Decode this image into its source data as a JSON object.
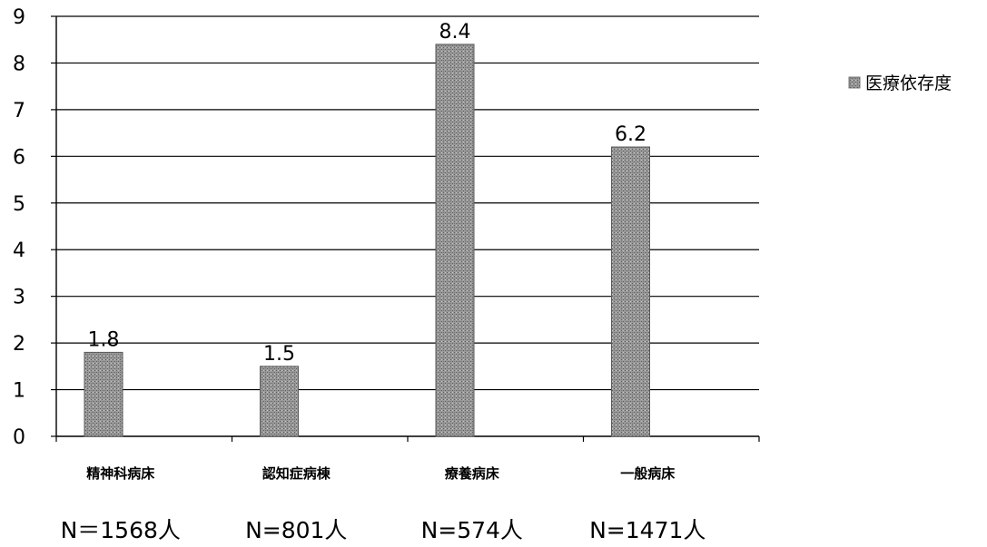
{
  "chart_data": {
    "type": "bar",
    "categories": [
      "精神科病床",
      "認知症病棟",
      "療養病床",
      "一般病床"
    ],
    "series": [
      {
        "name": "医療依存度",
        "values": [
          1.8,
          1.5,
          8.4,
          6.2
        ]
      }
    ],
    "data_labels": [
      "1.8",
      "1.5",
      "8.4",
      "6.2"
    ],
    "sample_sizes": [
      "N＝1568人",
      "N=801人",
      "N=574人",
      "N=1471人"
    ],
    "ylim": [
      0,
      9
    ],
    "yticks": [
      "0",
      "1",
      "2",
      "3",
      "4",
      "5",
      "6",
      "7",
      "8",
      "9"
    ],
    "grid": true,
    "legend_position": "top-right",
    "colors": {
      "bar": "#8c8c8c",
      "bar_edge": "#5a5a5a",
      "grid": "#000000"
    }
  }
}
